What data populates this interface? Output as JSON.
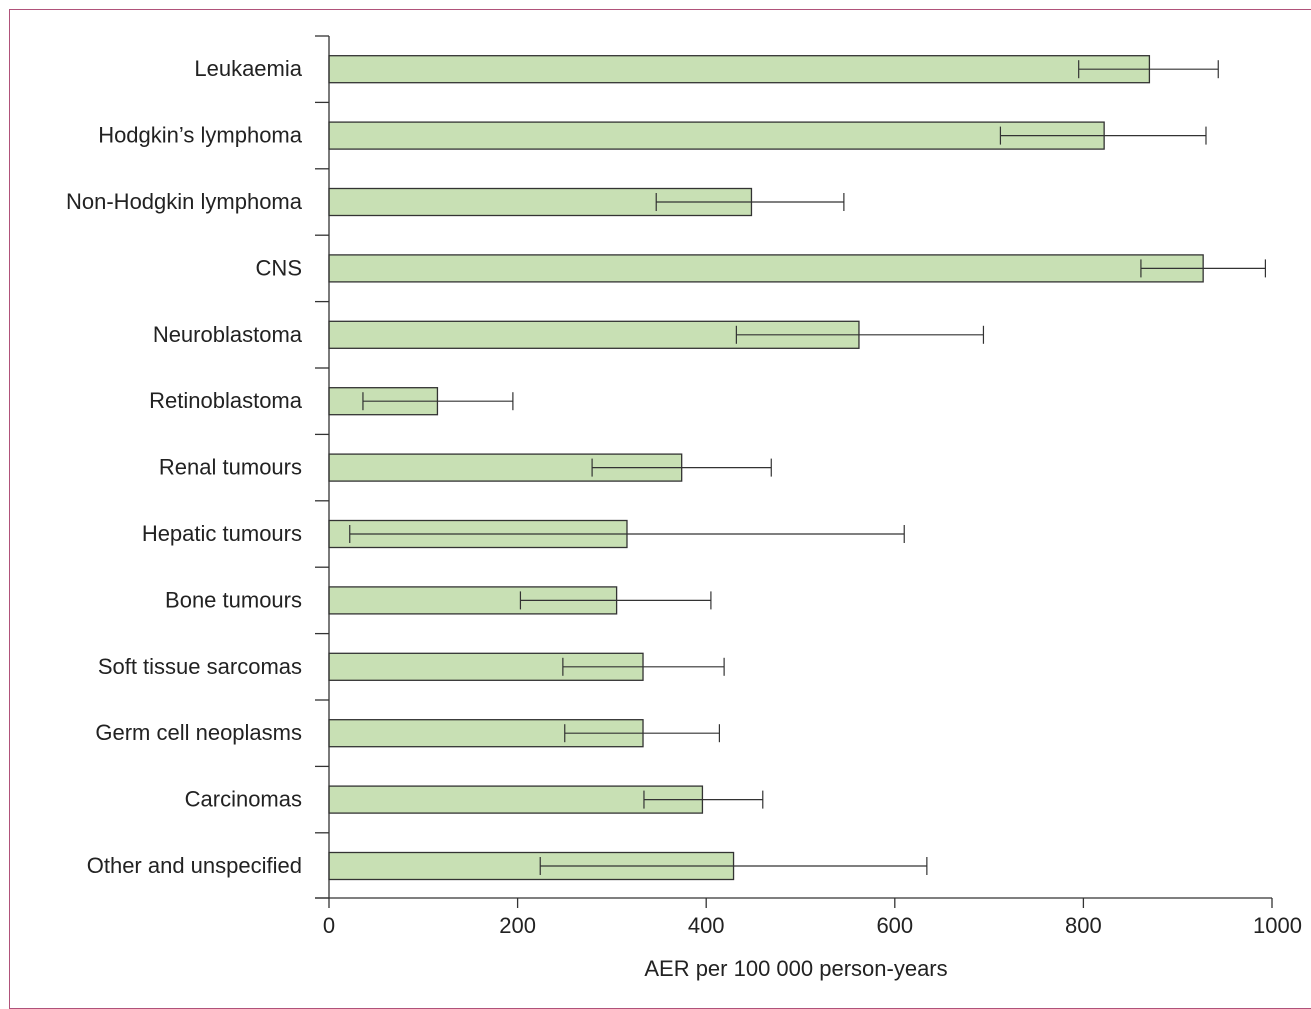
{
  "chart_data": {
    "type": "bar",
    "orientation": "horizontal",
    "categories": [
      "Leukaemia",
      "Hodgkin’s lymphoma",
      "Non-Hodgkin lymphoma",
      "CNS",
      "Neuroblastoma",
      "Retinoblastoma",
      "Renal tumours",
      "Hepatic tumours",
      "Bone tumours",
      "Soft tissue sarcomas",
      "Germ cell neoplasms",
      "Carcinomas",
      "Other and unspecified"
    ],
    "values": [
      870,
      822,
      448,
      927,
      562,
      115,
      374,
      316,
      305,
      333,
      333,
      396,
      429
    ],
    "error_low": [
      795,
      712,
      347,
      861,
      432,
      36,
      279,
      22,
      203,
      248,
      250,
      334,
      224
    ],
    "error_high": [
      943,
      930,
      546,
      993,
      694,
      195,
      469,
      610,
      405,
      419,
      414,
      460,
      634
    ],
    "xlabel": "AER per 100 000 person-years",
    "ylabel": "",
    "xlim": [
      0,
      1000
    ],
    "xticks": [
      "0",
      "200",
      "400",
      "600",
      "800",
      "1000"
    ],
    "colors": {
      "bar_fill": "#c8e0b4",
      "bar_stroke": "#333333",
      "axis": "#333333"
    },
    "grid": false,
    "legend": "none"
  }
}
